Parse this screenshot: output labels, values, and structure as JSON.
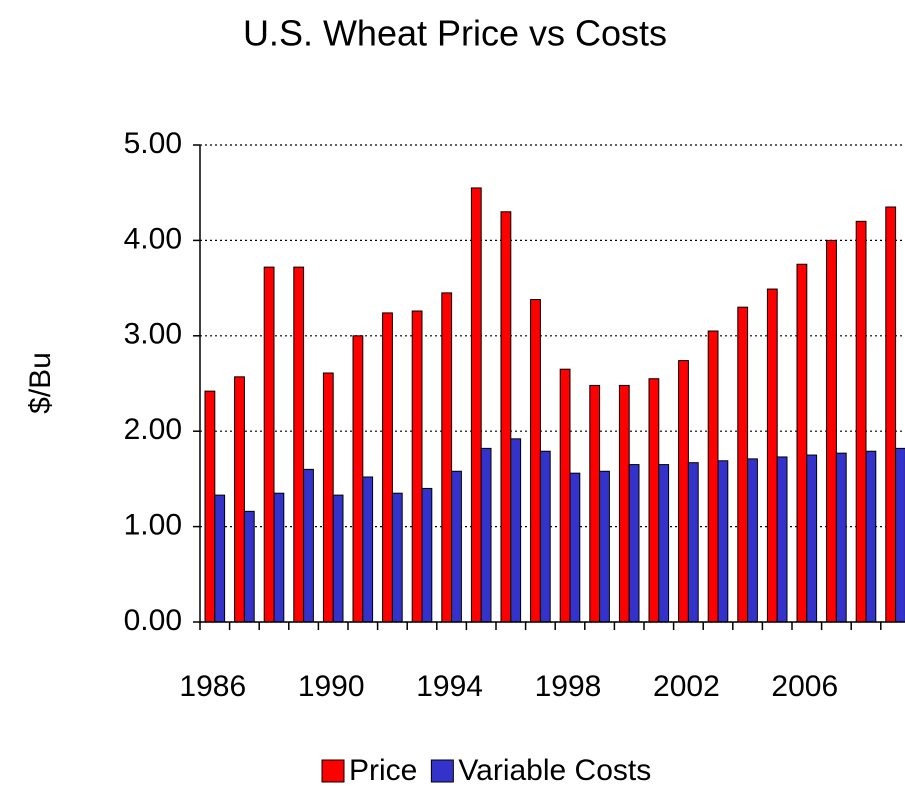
{
  "chart_data": {
    "type": "bar",
    "title": "U.S. Wheat Price vs Costs",
    "y_label": "$/Bu",
    "categories": [
      "1986",
      null,
      null,
      null,
      "1990",
      null,
      null,
      null,
      "1994",
      null,
      null,
      null,
      "1998",
      null,
      null,
      null,
      "2002",
      null,
      null,
      null,
      "2006",
      null,
      null,
      null
    ],
    "series": [
      {
        "name": "Price",
        "color": "#ff0000",
        "values": [
          2.42,
          2.57,
          3.72,
          3.72,
          2.61,
          3.0,
          3.24,
          3.26,
          3.45,
          4.55,
          4.3,
          3.38,
          2.65,
          2.48,
          2.48,
          2.55,
          2.74,
          3.05,
          3.3,
          3.49,
          3.75,
          4.0,
          4.2,
          4.35
        ]
      },
      {
        "name": "Variable Costs",
        "color": "#3333cc",
        "values": [
          1.33,
          1.16,
          1.35,
          1.6,
          1.33,
          1.52,
          1.35,
          1.4,
          1.58,
          1.82,
          1.92,
          1.79,
          1.56,
          1.58,
          1.65,
          1.65,
          1.67,
          1.69,
          1.71,
          1.73,
          1.75,
          1.77,
          1.79,
          1.82
        ]
      }
    ],
    "ylim": [
      0,
      5
    ],
    "yticks": [
      {
        "value": 0,
        "label": "0.00"
      },
      {
        "value": 1,
        "label": "1.00"
      },
      {
        "value": 2,
        "label": "2.00"
      },
      {
        "value": 3,
        "label": "3.00"
      },
      {
        "value": 4,
        "label": "4.00"
      },
      {
        "value": 5,
        "label": "5.00"
      }
    ],
    "grid": true,
    "legend": "bottom"
  }
}
